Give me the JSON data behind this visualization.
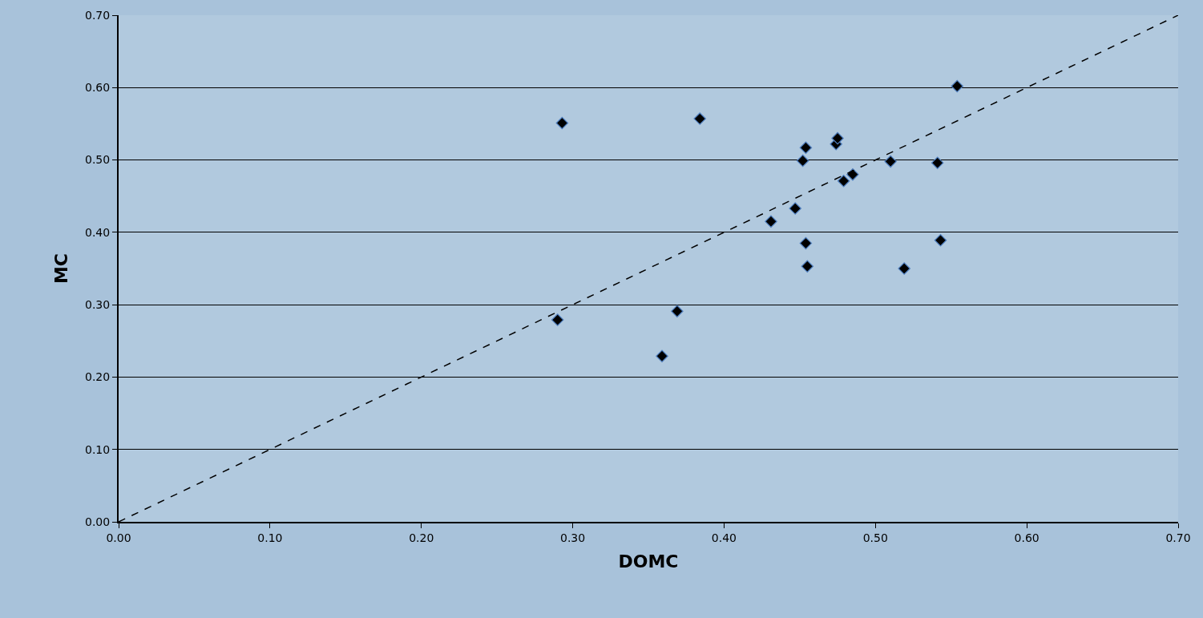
{
  "chart_data": {
    "type": "scatter",
    "xlabel": "DOMC",
    "ylabel": "MC",
    "xlim": [
      0,
      0.7
    ],
    "ylim": [
      0,
      0.7
    ],
    "xticks": [
      {
        "value": 0,
        "label": "0.00"
      },
      {
        "value": 0.1,
        "label": "0.10"
      },
      {
        "value": 0.2,
        "label": "0.20"
      },
      {
        "value": 0.3,
        "label": "0.30"
      },
      {
        "value": 0.4,
        "label": "0.40"
      },
      {
        "value": 0.5,
        "label": "0.50"
      },
      {
        "value": 0.6,
        "label": "0.60"
      },
      {
        "value": 0.7,
        "label": "0.70"
      }
    ],
    "yticks": [
      {
        "value": 0,
        "label": "0.00"
      },
      {
        "value": 0.1,
        "label": "0.10"
      },
      {
        "value": 0.2,
        "label": "0.20"
      },
      {
        "value": 0.3,
        "label": "0.30"
      },
      {
        "value": 0.4,
        "label": "0.40"
      },
      {
        "value": 0.5,
        "label": "0.50"
      },
      {
        "value": 0.6,
        "label": "0.60"
      },
      {
        "value": 0.7,
        "label": "0.70"
      }
    ],
    "grid": "y",
    "marker": "diamond",
    "legend": false,
    "series": [
      {
        "color": "#000000",
        "x": [
          0.293,
          0.384,
          0.554,
          0.474,
          0.475,
          0.454,
          0.452,
          0.51,
          0.541,
          0.485,
          0.479,
          0.447,
          0.431,
          0.454,
          0.543,
          0.455,
          0.519,
          0.369,
          0.29,
          0.359
        ],
        "values": [
          0.551,
          0.557,
          0.602,
          0.522,
          0.53,
          0.517,
          0.499,
          0.498,
          0.496,
          0.48,
          0.471,
          0.433,
          0.415,
          0.385,
          0.389,
          0.353,
          0.35,
          0.291,
          0.279,
          0.229
        ]
      },
      {
        "type": "line",
        "color": "#000000",
        "line_style": "dashed",
        "marker": "none",
        "x": [
          0,
          0.7
        ],
        "values": [
          0,
          0.7
        ]
      }
    ]
  }
}
